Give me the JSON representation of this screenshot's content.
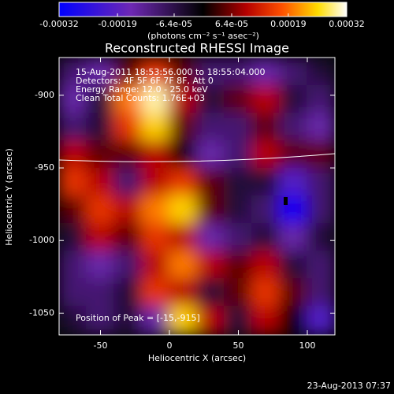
{
  "chart_data": {
    "type": "heatmap",
    "title": "Reconstructed RHESSI Image",
    "x_label": "Heliocentric X (arcsec)",
    "y_label": "Heliocentric Y (arcsec)",
    "colorbar_label": "(photons cm⁻² s⁻¹ asec⁻²)",
    "annotations": [
      "15-Aug-2011 18:53:56.000 to 18:55:04.000",
      "Detectors: 4F 5F 6F 7F 8F, Att 0",
      "Energy Range: 12.0 - 25.0 keV",
      "Clean     Total Counts: 1.76E+03"
    ],
    "peak_label": "Position of Peak = [-15,-915]",
    "footer": "23-Aug-2013 07:37",
    "x": [
      -70,
      -50,
      -30,
      -10,
      10,
      30,
      50,
      70,
      90,
      110
    ],
    "y": [
      -884,
      -903,
      -922,
      -941,
      -960,
      -979,
      -998,
      -1017,
      -1036,
      -1055
    ],
    "values": [
      [
        -0.0001,
        -0.00015,
        5e-05,
        0.00015,
        5e-05,
        -0.0001,
        -0.0001,
        -0.00015,
        -0.0001,
        -5e-05
      ],
      [
        -0.00015,
        -5e-05,
        0.0002,
        0.0003,
        0.0001,
        -5e-05,
        5e-05,
        0.0001,
        -5e-05,
        -0.0001
      ],
      [
        -0.0001,
        -5e-05,
        0.00015,
        0.00025,
        5e-05,
        -0.0001,
        -0.0001,
        5e-05,
        -0.0001,
        -0.00015
      ],
      [
        0.0001,
        5e-05,
        5e-05,
        0.0001,
        0,
        -0.00015,
        -0.0001,
        0.0001,
        5e-05,
        5e-05
      ],
      [
        0.00015,
        0.0001,
        -0.0001,
        0.0001,
        0.00015,
        5e-05,
        -5e-05,
        -5e-05,
        -0.0002,
        -0.0001
      ],
      [
        5e-05,
        0.00015,
        0.0001,
        0.0002,
        0.00025,
        5e-05,
        -5e-05,
        -0.0001,
        -0.0003,
        -0.0001
      ],
      [
        -5e-05,
        0.0001,
        5e-05,
        0.00015,
        0.0001,
        -0.00015,
        -0.0001,
        -5e-05,
        -0.00015,
        -5e-05
      ],
      [
        -0.0001,
        -0.00015,
        -0.0001,
        0.0001,
        0.0002,
        0.0001,
        5e-05,
        0.0001,
        -5e-05,
        -0.0001
      ],
      [
        -0.0001,
        -0.0001,
        -5e-05,
        0.00015,
        0.0001,
        -5e-05,
        5e-05,
        0.00015,
        5e-05,
        -0.0001
      ],
      [
        -5e-05,
        -0.0001,
        -5e-05,
        -0.00015,
        0.00025,
        0.0001,
        -5e-05,
        0.0001,
        0,
        -0.0002
      ]
    ],
    "xlim": [
      -80,
      120
    ],
    "ylim": [
      -1065,
      -874
    ],
    "xticks": [
      -50,
      0,
      50,
      100
    ],
    "yticks": [
      -900,
      -950,
      -1000,
      -1050
    ],
    "clim": [
      -0.00032,
      0.00032
    ],
    "cticks": [
      -0.00032,
      -0.00019,
      {
        "value": -6.4e-05,
        "label": "-6.4e-05"
      },
      {
        "value": 6.4e-05,
        "label": "6.4e-05"
      },
      0.00019,
      0.00032
    ]
  }
}
